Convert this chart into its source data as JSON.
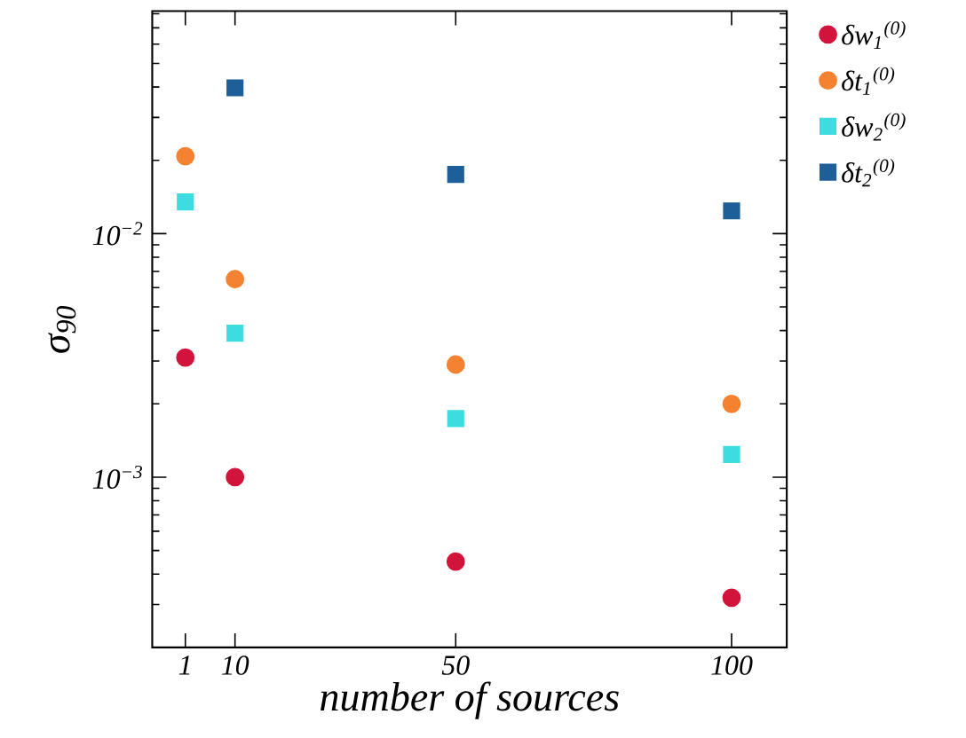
{
  "chart_data": {
    "type": "scatter",
    "xlabel": "number of sources",
    "ylabel": "σ$_{90}$",
    "xlim": [
      -5,
      110
    ],
    "xticks": [
      1,
      10,
      50,
      100
    ],
    "ylim": [
      0.0002,
      0.082
    ],
    "yticks": [
      {
        "value": 0.01,
        "label": "10$^{−2}$"
      },
      {
        "value": 0.001,
        "label": "10$^{−3}$"
      }
    ],
    "log": "y",
    "grid": false,
    "legend": "right",
    "series": [
      {
        "name": "δw$_{1}$$^{(0)}$",
        "color": "#d2143c",
        "marker": "circle",
        "x": [
          1,
          10,
          50,
          100
        ],
        "values": [
          0.0031,
          0.001,
          0.00045,
          0.00032
        ]
      },
      {
        "name": "δt$_{1}$$^{(0)}$",
        "color": "#f58231",
        "marker": "circle",
        "x": [
          1,
          10,
          50,
          100
        ],
        "values": [
          0.0208,
          0.0065,
          0.0029,
          0.002
        ]
      },
      {
        "name": "δw$_{2}$$^{(0)}$",
        "color": "#3cdce1",
        "marker": "square",
        "x": [
          1,
          10,
          50,
          100
        ],
        "values": [
          0.0135,
          0.0039,
          0.00174,
          0.00124
        ]
      },
      {
        "name": "δt$_{2}$$^{(0)}$",
        "color": "#1f5f99",
        "marker": "square",
        "x": [
          10,
          50,
          100
        ],
        "values": [
          0.0397,
          0.0175,
          0.0124
        ]
      }
    ]
  }
}
